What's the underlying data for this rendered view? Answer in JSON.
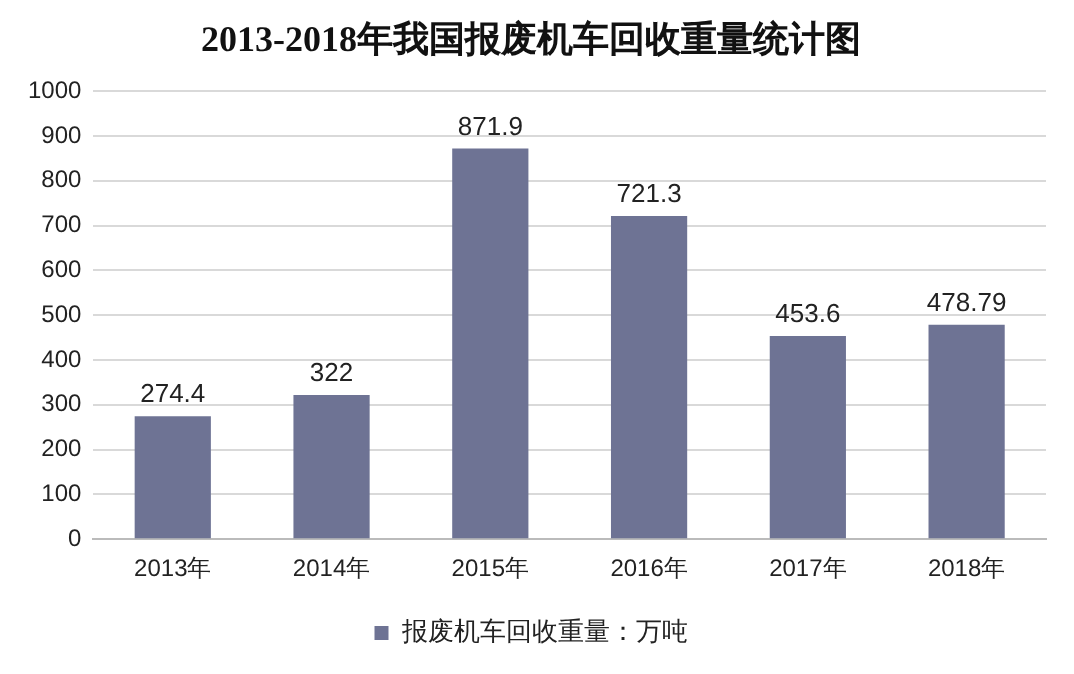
{
  "chart_data": {
    "type": "bar",
    "title": "2013-2018年我国报废机车回收重量统计图",
    "categories": [
      "2013年",
      "2014年",
      "2015年",
      "2016年",
      "2017年",
      "2018年"
    ],
    "series": [
      {
        "name": "报废机车回收重量：万吨",
        "color": "#6e7394",
        "values": [
          274.4,
          322,
          871.9,
          721.3,
          453.6,
          478.79
        ]
      }
    ],
    "ylim": [
      0,
      1000
    ],
    "yticks": [
      0,
      100,
      200,
      300,
      400,
      500,
      600,
      700,
      800,
      900,
      1000
    ],
    "grid": "y",
    "legend": "bottom",
    "data_labels": true
  }
}
